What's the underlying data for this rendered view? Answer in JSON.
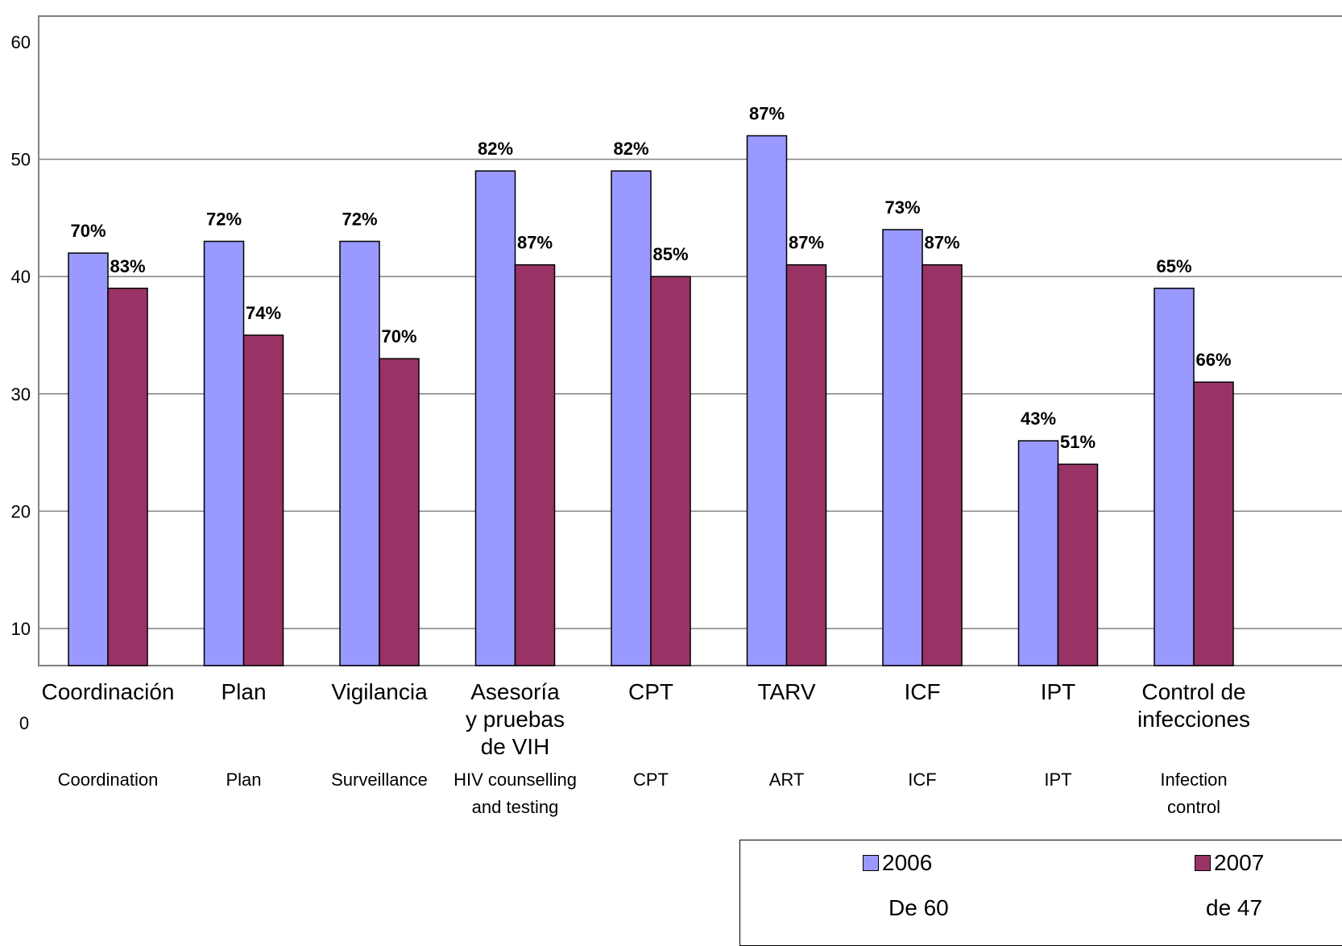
{
  "chart_data": {
    "type": "bar",
    "categories": [
      "Coordinación",
      "Plan",
      "Vigilancia",
      "Asesoría y pruebas de VIH",
      "CPT",
      "TARV",
      "ICF",
      "IPT",
      "Control de infecciones"
    ],
    "categories_es_lines": [
      [
        "Coordinación"
      ],
      [
        "Plan"
      ],
      [
        "Vigilancia"
      ],
      [
        "Asesoría",
        "y pruebas",
        "de VIH"
      ],
      [
        "CPT"
      ],
      [
        "TARV"
      ],
      [
        "ICF"
      ],
      [
        "IPT"
      ],
      [
        "Control de",
        "infecciones"
      ]
    ],
    "categories_en_lines": [
      [
        "Coordination"
      ],
      [
        "Plan"
      ],
      [
        "Surveillance"
      ],
      [
        "HIV counselling",
        "and testing"
      ],
      [
        "CPT"
      ],
      [
        "ART"
      ],
      [
        "ICF"
      ],
      [
        "IPT"
      ],
      [
        "Infection",
        "control"
      ]
    ],
    "series": [
      {
        "name": "2006",
        "values": [
          42,
          43,
          43,
          49,
          49,
          52,
          44,
          26,
          39
        ],
        "labels": [
          "70%",
          "72%",
          "72%",
          "82%",
          "82%",
          "87%",
          "73%",
          "43%",
          "65%"
        ],
        "color": "#9999FF"
      },
      {
        "name": "2007",
        "values": [
          39,
          35,
          33,
          41,
          40,
          41,
          41,
          24,
          31
        ],
        "labels": [
          "83%",
          "74%",
          "70%",
          "87%",
          "85%",
          "87%",
          "87%",
          "51%",
          "66%"
        ],
        "color": "#993366"
      }
    ],
    "yticks": [
      10,
      20,
      30,
      40,
      50,
      60
    ],
    "y_zero_label": "0",
    "ylim": [
      0,
      60
    ],
    "grid": true,
    "legend": {
      "placement": "bottom-right",
      "entries": [
        {
          "label": "2006",
          "note": "De 60",
          "color": "#9999FF"
        },
        {
          "label": "2007",
          "note": "de 47",
          "color": "#993366"
        }
      ]
    }
  }
}
